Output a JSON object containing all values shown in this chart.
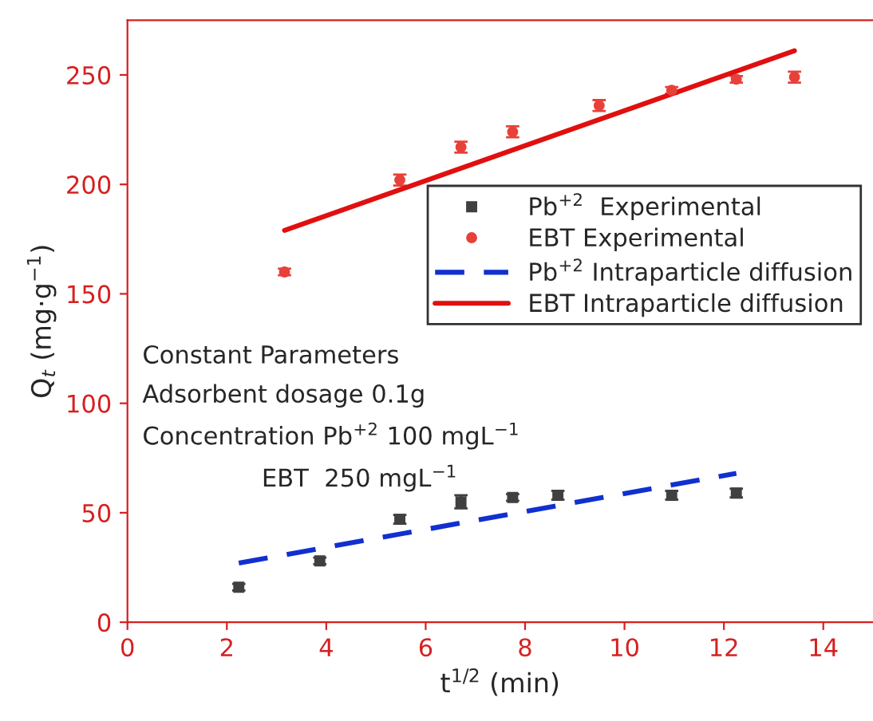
{
  "chart_data": {
    "type": "scatter",
    "xlabel": "t$^{1/2}$ (min)",
    "ylabel": "Q$_{t}$ (mg·g$^{−1}$)",
    "xlim": [
      0,
      15
    ],
    "xticks": [
      0,
      2,
      4,
      6,
      8,
      10,
      12,
      14
    ],
    "ylim": [
      0,
      275
    ],
    "yticks": [
      0,
      50,
      100,
      150,
      200,
      250
    ],
    "legend": "right",
    "grid": false,
    "series": [
      {
        "name": "Pb$^{+2}$  Experimental",
        "marker": "square",
        "color": "#404040",
        "x": [
          2.24,
          3.87,
          5.48,
          6.71,
          7.75,
          8.66,
          10.95,
          12.25
        ],
        "values": [
          16,
          28,
          47,
          55,
          57,
          58,
          58,
          59
        ],
        "errors": [
          1.5,
          1.5,
          2,
          3,
          1.5,
          2,
          2,
          2
        ]
      },
      {
        "name": "EBT Experimental",
        "marker": "circle",
        "color": "#e8403a",
        "x": [
          3.16,
          5.48,
          6.71,
          7.75,
          9.49,
          10.95,
          12.25,
          13.42
        ],
        "values": [
          160,
          202,
          217,
          224,
          236,
          243,
          248,
          249
        ],
        "errors": [
          1.5,
          2.5,
          2.5,
          2.5,
          2.5,
          1.5,
          1.5,
          2.5
        ]
      },
      {
        "name": "Pb$^{+2}$ Intraparticle diffusion",
        "type": "line",
        "line_style": "dashed",
        "color": "#1030d0",
        "x": [
          2.24,
          12.25
        ],
        "values": [
          27,
          68
        ]
      },
      {
        "name": "EBT Intraparticle diffusion",
        "type": "line",
        "line_style": "solid",
        "color": "#e01010",
        "x": [
          3.16,
          13.42
        ],
        "values": [
          179,
          261
        ]
      }
    ],
    "annotations": [
      "Constant Parameters",
      "Adsorbent dosage 0.1g",
      "Concentration Pb$^{+2}$ 100 mgL$^{−1}$",
      "EBT  250 mgL$^{−1}$"
    ]
  }
}
